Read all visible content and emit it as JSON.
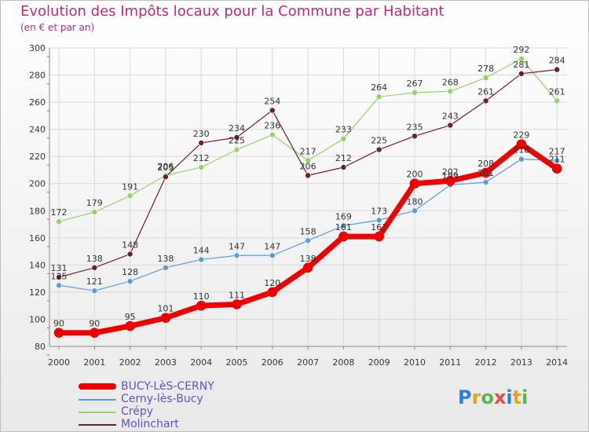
{
  "header": {
    "title": "Evolution des Impôts locaux pour la Commune par Habitant",
    "subtitle": "(en € et par an)"
  },
  "logo": {
    "text": "Proxiti",
    "colors": [
      "#2c7fcf",
      "#e8a21a",
      "#55b848",
      "#e64b3c",
      "#2c7fcf",
      "#e8a21a",
      "#55b848"
    ]
  },
  "chart_data": {
    "type": "line",
    "categories": [
      "2000",
      "2001",
      "2002",
      "2003",
      "2004",
      "2005",
      "2006",
      "2007",
      "2008",
      "2009",
      "2010",
      "2011",
      "2012",
      "2013",
      "2014"
    ],
    "ylim": [
      80,
      300
    ],
    "yticks": [
      80,
      100,
      120,
      140,
      160,
      180,
      200,
      220,
      240,
      260,
      280,
      300
    ],
    "grid": true,
    "legend_position": "bottom-left",
    "series": [
      {
        "name": "Crépy",
        "color": "#93d36a",
        "width": 1.2,
        "values": [
          172,
          179,
          191,
          206,
          212,
          225,
          236,
          217,
          233,
          264,
          267,
          268,
          278,
          292,
          261
        ]
      },
      {
        "name": "Molinchart",
        "color": "#6b1f28",
        "width": 1.2,
        "values": [
          131,
          138,
          148,
          205,
          230,
          234,
          254,
          206,
          212,
          225,
          235,
          243,
          261,
          281,
          284
        ]
      },
      {
        "name": "Cerny-lès-Bucy",
        "color": "#5b9bd5",
        "width": 1.2,
        "values": [
          125,
          121,
          128,
          138,
          144,
          147,
          147,
          158,
          169,
          173,
          180,
          199,
          201,
          218,
          217
        ]
      },
      {
        "name": "BUCY-LèS-CERNY",
        "color": "#ee0000",
        "width": 7,
        "values": [
          90,
          90,
          95,
          101,
          110,
          111,
          120,
          138,
          161,
          161,
          200,
          202,
          208,
          229,
          211
        ]
      }
    ],
    "labels": [
      {
        "text": "172",
        "series": "Crépy",
        "index": 0
      },
      {
        "text": "179",
        "series": "Crépy",
        "index": 1
      },
      {
        "text": "191",
        "series": "Crépy",
        "index": 2
      },
      {
        "text": "206",
        "series": "Crépy",
        "index": 3
      },
      {
        "text": "212",
        "series": "Crépy",
        "index": 4
      },
      {
        "text": "225",
        "series": "Crépy",
        "index": 5
      },
      {
        "text": "236",
        "series": "Crépy",
        "index": 6
      },
      {
        "text": "217",
        "series": "Crépy",
        "index": 7
      },
      {
        "text": "233",
        "series": "Crépy",
        "index": 8
      },
      {
        "text": "264",
        "series": "Crépy",
        "index": 9
      },
      {
        "text": "267",
        "series": "Crépy",
        "index": 10
      },
      {
        "text": "268",
        "series": "Crépy",
        "index": 11
      },
      {
        "text": "278",
        "series": "Crépy",
        "index": 12
      },
      {
        "text": "292",
        "series": "Crépy",
        "index": 13
      },
      {
        "text": "261",
        "series": "Crépy",
        "index": 14
      },
      {
        "text": "131",
        "series": "Molinchart",
        "index": 0
      },
      {
        "text": "138",
        "series": "Molinchart",
        "index": 1
      },
      {
        "text": "148",
        "series": "Molinchart",
        "index": 2
      },
      {
        "text": "205",
        "series": "Molinchart",
        "index": 3
      },
      {
        "text": "230",
        "series": "Molinchart",
        "index": 4
      },
      {
        "text": "234",
        "series": "Molinchart",
        "index": 5
      },
      {
        "text": "254",
        "series": "Molinchart",
        "index": 6
      },
      {
        "text": "206",
        "series": "Molinchart",
        "index": 7
      },
      {
        "text": "212",
        "series": "Molinchart",
        "index": 8
      },
      {
        "text": "225",
        "series": "Molinchart",
        "index": 9
      },
      {
        "text": "235",
        "series": "Molinchart",
        "index": 10
      },
      {
        "text": "243",
        "series": "Molinchart",
        "index": 11
      },
      {
        "text": "261",
        "series": "Molinchart",
        "index": 12
      },
      {
        "text": "281",
        "series": "Molinchart",
        "index": 13
      },
      {
        "text": "284",
        "series": "Molinchart",
        "index": 14
      },
      {
        "text": "125",
        "series": "Cerny-lès-Bucy",
        "index": 0
      },
      {
        "text": "121",
        "series": "Cerny-lès-Bucy",
        "index": 1
      },
      {
        "text": "128",
        "series": "Cerny-lès-Bucy",
        "index": 2
      },
      {
        "text": "138",
        "series": "Cerny-lès-Bucy",
        "index": 3
      },
      {
        "text": "144",
        "series": "Cerny-lès-Bucy",
        "index": 4
      },
      {
        "text": "147",
        "series": "Cerny-lès-Bucy",
        "index": 5
      },
      {
        "text": "147",
        "series": "Cerny-lès-Bucy",
        "index": 6
      },
      {
        "text": "158",
        "series": "Cerny-lès-Bucy",
        "index": 7
      },
      {
        "text": "169",
        "series": "Cerny-lès-Bucy",
        "index": 8
      },
      {
        "text": "173",
        "series": "Cerny-lès-Bucy",
        "index": 9
      },
      {
        "text": "180",
        "series": "Cerny-lès-Bucy",
        "index": 10
      },
      {
        "text": "199",
        "series": "Cerny-lès-Bucy",
        "index": 11
      },
      {
        "text": "201",
        "series": "Cerny-lès-Bucy",
        "index": 12
      },
      {
        "text": "218",
        "series": "Cerny-lès-Bucy",
        "index": 13
      },
      {
        "text": "217",
        "series": "Cerny-lès-Bucy",
        "index": 14
      },
      {
        "text": "90",
        "series": "BUCY-LèS-CERNY",
        "index": 0
      },
      {
        "text": "90",
        "series": "BUCY-LèS-CERNY",
        "index": 1
      },
      {
        "text": "95",
        "series": "BUCY-LèS-CERNY",
        "index": 2
      },
      {
        "text": "101",
        "series": "BUCY-LèS-CERNY",
        "index": 3
      },
      {
        "text": "110",
        "series": "BUCY-LèS-CERNY",
        "index": 4
      },
      {
        "text": "111",
        "series": "BUCY-LèS-CERNY",
        "index": 5
      },
      {
        "text": "120",
        "series": "BUCY-LèS-CERNY",
        "index": 6
      },
      {
        "text": "138",
        "series": "BUCY-LèS-CERNY",
        "index": 7
      },
      {
        "text": "161",
        "series": "BUCY-LèS-CERNY",
        "index": 8
      },
      {
        "text": "161",
        "series": "BUCY-LèS-CERNY",
        "index": 9
      },
      {
        "text": "200",
        "series": "BUCY-LèS-CERNY",
        "index": 10
      },
      {
        "text": "202",
        "series": "BUCY-LèS-CERNY",
        "index": 11
      },
      {
        "text": "208",
        "series": "BUCY-LèS-CERNY",
        "index": 12
      },
      {
        "text": "229",
        "series": "BUCY-LèS-CERNY",
        "index": 13
      },
      {
        "text": "211",
        "series": "BUCY-LèS-CERNY",
        "index": 14
      }
    ]
  },
  "legend": {
    "items": [
      {
        "name": "BUCY-LèS-CERNY",
        "color": "#ee0000",
        "thick": true
      },
      {
        "name": "Cerny-lès-Bucy",
        "color": "#5b9bd5",
        "thick": false
      },
      {
        "name": "Crépy",
        "color": "#93d36a",
        "thick": false
      },
      {
        "name": "Molinchart",
        "color": "#6b1f28",
        "thick": false
      }
    ]
  }
}
